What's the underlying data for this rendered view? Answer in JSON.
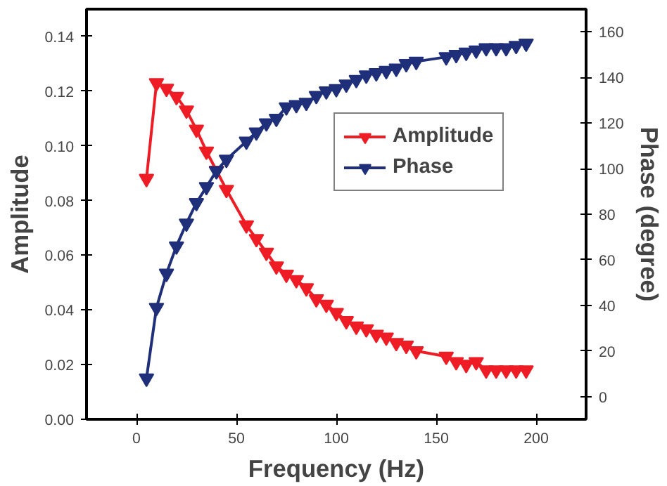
{
  "chart_data": {
    "type": "line",
    "xlabel": "Frequency (Hz)",
    "ylabel": "Amplitude",
    "y2label": "Phase (degree)",
    "x": [
      5,
      10,
      15,
      20,
      25,
      30,
      35,
      40,
      45,
      55,
      60,
      65,
      70,
      75,
      80,
      85,
      90,
      95,
      100,
      105,
      110,
      115,
      120,
      125,
      130,
      135,
      140,
      155,
      160,
      165,
      170,
      175,
      180,
      185,
      190,
      195
    ],
    "series": [
      {
        "name": "Amplitude",
        "color": "#ee1c25",
        "values": [
          0.088,
          0.123,
          0.121,
          0.118,
          0.113,
          0.106,
          0.098,
          0.091,
          0.084,
          0.071,
          0.066,
          0.061,
          0.056,
          0.053,
          0.051,
          0.048,
          0.044,
          0.042,
          0.039,
          0.036,
          0.034,
          0.033,
          0.031,
          0.03,
          0.028,
          0.027,
          0.025,
          0.023,
          0.021,
          0.02,
          0.021,
          0.018,
          0.018,
          0.018,
          0.018,
          0.018
        ]
      },
      {
        "name": "Phase",
        "color": "#1f2f7a",
        "axis": "y2",
        "values": [
          8,
          39,
          54,
          66,
          76,
          85,
          92,
          99,
          104,
          112,
          116,
          120,
          122,
          127,
          128,
          129,
          132,
          134,
          135,
          137,
          139,
          141,
          142,
          143,
          144,
          146,
          147,
          149,
          150,
          151,
          152,
          153,
          153,
          153,
          154,
          155
        ]
      }
    ],
    "xlim": [
      -25,
      225
    ],
    "xticks": [
      0,
      50,
      100,
      150,
      200
    ],
    "ylim": [
      0,
      0.15
    ],
    "yticks": [
      {
        "value": 0,
        "label": "0.00"
      },
      {
        "value": 0.02,
        "label": "0.02"
      },
      {
        "value": 0.04,
        "label": "0.04"
      },
      {
        "value": 0.06,
        "label": "0.06"
      },
      {
        "value": 0.08,
        "label": "0.08"
      },
      {
        "value": 0.1,
        "label": "0.10"
      },
      {
        "value": 0.12,
        "label": "0.12"
      },
      {
        "value": 0.14,
        "label": "0.14"
      }
    ],
    "y2lim": [
      -10,
      170
    ],
    "y2ticks": [
      0,
      20,
      40,
      60,
      80,
      100,
      120,
      140,
      160
    ],
    "legend": "top right",
    "marker": "triangle",
    "line_style": "solid",
    "grid": false
  }
}
